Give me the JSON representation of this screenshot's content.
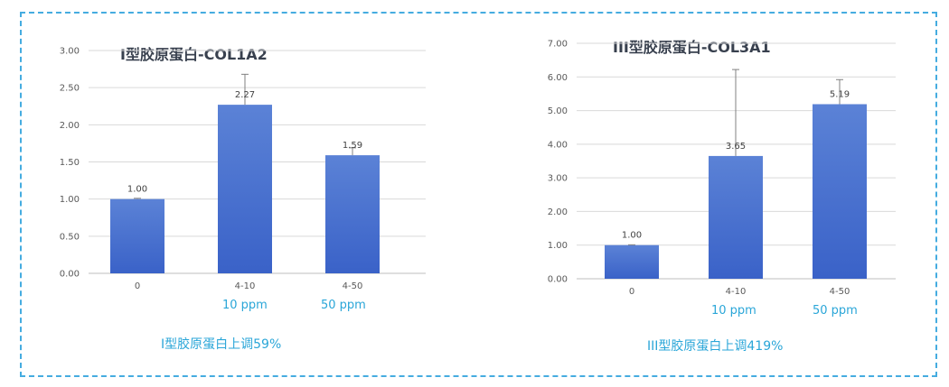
{
  "charts": [
    {
      "id": "col1a2",
      "caption": "I型胶原蛋白上调59%",
      "sublabels": [
        "10 ppm",
        "50 ppm"
      ],
      "chart_data": {
        "type": "bar",
        "title": "I型胶原蛋白-COL1A2",
        "categories": [
          "0",
          "4-10",
          "4-50"
        ],
        "values": [
          1.0,
          2.27,
          1.59
        ],
        "data_labels": [
          "1.00",
          "2.27",
          "1.59"
        ],
        "error_upper": [
          1.01,
          2.68,
          1.69
        ],
        "ylim": [
          0,
          3
        ],
        "yticks": [
          "0.00",
          "0.50",
          "1.00",
          "1.50",
          "2.00",
          "2.50",
          "3.00"
        ],
        "ytick_values": [
          0,
          0.5,
          1,
          1.5,
          2,
          2.5,
          3
        ],
        "grid": true,
        "bar_color_top": "#5b82d6",
        "bar_color_bottom": "#3a62c8"
      }
    },
    {
      "id": "col3a1",
      "caption": "III型胶原蛋白上调419%",
      "sublabels": [
        "10 ppm",
        "50 ppm"
      ],
      "chart_data": {
        "type": "bar",
        "title": "III型胶原蛋白-COL3A1",
        "categories": [
          "0",
          "4-10",
          "4-50"
        ],
        "values": [
          1.0,
          3.65,
          5.19
        ],
        "data_labels": [
          "1.00",
          "3.65",
          "5.19"
        ],
        "error_upper": [
          1.01,
          6.22,
          5.92
        ],
        "ylim": [
          0,
          7
        ],
        "yticks": [
          "0.00",
          "1.00",
          "2.00",
          "3.00",
          "4.00",
          "5.00",
          "6.00",
          "7.00"
        ],
        "ytick_values": [
          0,
          1,
          2,
          3,
          4,
          5,
          6,
          7
        ],
        "grid": true,
        "bar_color_top": "#5b82d6",
        "bar_color_bottom": "#3a62c8"
      }
    }
  ]
}
